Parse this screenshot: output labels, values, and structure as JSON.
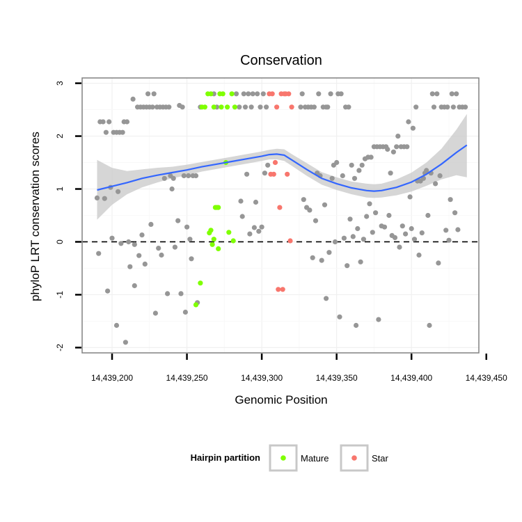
{
  "chart_data": {
    "type": "scatter",
    "title": "Conservation",
    "xlabel": "Genomic Position",
    "ylabel": "phyloP LRT conservation scores",
    "xlim": [
      14439180,
      14439445
    ],
    "ylim": [
      -2.1,
      3.1
    ],
    "x_ticks": [
      {
        "value": 14439200,
        "label": "14,439,200"
      },
      {
        "value": 14439250,
        "label": "14,439,250"
      },
      {
        "value": 14439300,
        "label": "14,439,300"
      },
      {
        "value": 14439350,
        "label": "14,439,350"
      },
      {
        "value": 14439400,
        "label": "14,439,400"
      },
      {
        "value": 14439450,
        "label": "14,439,450"
      }
    ],
    "y_ticks": [
      {
        "value": -2,
        "label": "-2"
      },
      {
        "value": -1,
        "label": "-1"
      },
      {
        "value": 0,
        "label": "0"
      },
      {
        "value": 1,
        "label": "1"
      },
      {
        "value": 2,
        "label": "2"
      },
      {
        "value": 3,
        "label": "3"
      }
    ],
    "reference_line": {
      "y": 0,
      "style": "dashed",
      "color": "#000000"
    },
    "grid": true,
    "legend": {
      "title": "Hairpin partition",
      "position": "bottom",
      "entries": [
        {
          "label": "Mature",
          "color": "#7FFF00"
        },
        {
          "label": "Star",
          "color": "#F8766D"
        }
      ]
    },
    "colors": {
      "other": "#969696",
      "mature": "#7FFF00",
      "star": "#F8766D",
      "smooth": "#3366FF",
      "band": "#C8C8C8"
    },
    "smooth": {
      "x": [
        14439190,
        14439200,
        14439210,
        14439220,
        14439230,
        14439240,
        14439250,
        14439260,
        14439270,
        14439280,
        14439290,
        14439300,
        14439305,
        14439310,
        14439315,
        14439320,
        14439330,
        14439340,
        14439350,
        14439360,
        14439370,
        14439375,
        14439380,
        14439390,
        14439400,
        14439410,
        14439420,
        14439430,
        14439437
      ],
      "y": [
        0.98,
        1.05,
        1.12,
        1.2,
        1.26,
        1.31,
        1.36,
        1.42,
        1.47,
        1.52,
        1.57,
        1.62,
        1.65,
        1.66,
        1.64,
        1.55,
        1.37,
        1.2,
        1.1,
        1.02,
        0.97,
        0.96,
        0.97,
        1.03,
        1.13,
        1.28,
        1.47,
        1.69,
        1.83
      ],
      "lower": [
        0.42,
        0.7,
        0.9,
        1.03,
        1.12,
        1.2,
        1.26,
        1.33,
        1.38,
        1.43,
        1.48,
        1.53,
        1.56,
        1.56,
        1.53,
        1.44,
        1.25,
        1.08,
        0.98,
        0.9,
        0.84,
        0.83,
        0.84,
        0.88,
        0.95,
        1.06,
        1.18,
        1.26,
        1.22
      ],
      "upper": [
        1.55,
        1.4,
        1.34,
        1.37,
        1.4,
        1.42,
        1.46,
        1.51,
        1.56,
        1.61,
        1.66,
        1.71,
        1.74,
        1.76,
        1.75,
        1.66,
        1.49,
        1.32,
        1.22,
        1.14,
        1.1,
        1.09,
        1.1,
        1.18,
        1.31,
        1.5,
        1.76,
        2.12,
        2.42
      ]
    },
    "series": [
      {
        "group": "other",
        "points": [
          [
            14439190,
            0.83
          ],
          [
            14439191,
            -0.22
          ],
          [
            14439192,
            2.27
          ],
          [
            14439194,
            2.27
          ],
          [
            14439195,
            0.82
          ],
          [
            14439196,
            2.07
          ],
          [
            14439197,
            -0.93
          ],
          [
            14439198,
            2.27
          ],
          [
            14439199,
            1.03
          ],
          [
            14439200,
            0.07
          ],
          [
            14439201,
            2.07
          ],
          [
            14439203,
            2.07
          ],
          [
            14439203,
            -1.58
          ],
          [
            14439204,
            0.95
          ],
          [
            14439205,
            2.07
          ],
          [
            14439206,
            -0.03
          ],
          [
            14439207,
            2.07
          ],
          [
            14439208,
            2.27
          ],
          [
            14439209,
            -1.9
          ],
          [
            14439210,
            2.27
          ],
          [
            14439211,
            0.0
          ],
          [
            14439212,
            -0.47
          ],
          [
            14439214,
            2.7
          ],
          [
            14439215,
            -0.05
          ],
          [
            14439215,
            -0.83
          ],
          [
            14439217,
            2.55
          ],
          [
            14439218,
            -0.26
          ],
          [
            14439219,
            2.55
          ],
          [
            14439220,
            0.13
          ],
          [
            14439221,
            2.55
          ],
          [
            14439222,
            -0.42
          ],
          [
            14439223,
            2.55
          ],
          [
            14439224,
            2.8
          ],
          [
            14439225,
            2.55
          ],
          [
            14439226,
            0.33
          ],
          [
            14439227,
            2.55
          ],
          [
            14439228,
            2.8
          ],
          [
            14439229,
            -1.35
          ],
          [
            14439230,
            2.55
          ],
          [
            14439231,
            -0.12
          ],
          [
            14439232,
            2.55
          ],
          [
            14439233,
            -0.25
          ],
          [
            14439234,
            2.55
          ],
          [
            14439235,
            1.2
          ],
          [
            14439236,
            2.55
          ],
          [
            14439237,
            -0.98
          ],
          [
            14439238,
            2.55
          ],
          [
            14439239,
            1.25
          ],
          [
            14439240,
            1.0
          ],
          [
            14439241,
            1.2
          ],
          [
            14439242,
            -0.1
          ],
          [
            14439244,
            0.4
          ],
          [
            14439245,
            2.58
          ],
          [
            14439246,
            -0.98
          ],
          [
            14439247,
            2.55
          ],
          [
            14439248,
            1.25
          ],
          [
            14439249,
            -1.33
          ],
          [
            14439250,
            0.28
          ],
          [
            14439251,
            1.25
          ],
          [
            14439252,
            0.05
          ],
          [
            14439253,
            -0.32
          ],
          [
            14439254,
            1.25
          ],
          [
            14439256,
            1.25
          ],
          [
            14439257,
            -1.15
          ],
          [
            14439259,
            2.55
          ],
          [
            14439268,
            2.8
          ],
          [
            14439270,
            2.55
          ],
          [
            14439283,
            2.8
          ],
          [
            14439285,
            2.55
          ],
          [
            14439286,
            0.77
          ],
          [
            14439287,
            0.48
          ],
          [
            14439288,
            2.8
          ],
          [
            14439289,
            2.55
          ],
          [
            14439290,
            1.28
          ],
          [
            14439291,
            2.8
          ],
          [
            14439292,
            0.15
          ],
          [
            14439293,
            2.55
          ],
          [
            14439294,
            2.8
          ],
          [
            14439295,
            0.27
          ],
          [
            14439296,
            0.75
          ],
          [
            14439297,
            2.8
          ],
          [
            14439298,
            0.2
          ],
          [
            14439299,
            2.55
          ],
          [
            14439300,
            0.28
          ],
          [
            14439301,
            2.8
          ],
          [
            14439302,
            1.3
          ],
          [
            14439303,
            2.55
          ],
          [
            14439304,
            1.45
          ],
          [
            14439326,
            2.55
          ],
          [
            14439327,
            2.8
          ],
          [
            14439328,
            0.8
          ],
          [
            14439329,
            2.55
          ],
          [
            14439330,
            0.65
          ],
          [
            14439331,
            2.55
          ],
          [
            14439332,
            0.6
          ],
          [
            14439333,
            2.55
          ],
          [
            14439334,
            -0.3
          ],
          [
            14439335,
            2.55
          ],
          [
            14439336,
            0.4
          ],
          [
            14439337,
            1.3
          ],
          [
            14439338,
            2.8
          ],
          [
            14439339,
            1.25
          ],
          [
            14439340,
            -0.35
          ],
          [
            14439341,
            2.55
          ],
          [
            14439342,
            0.7
          ],
          [
            14439343,
            2.55
          ],
          [
            14439343,
            -1.07
          ],
          [
            14439344,
            2.55
          ],
          [
            14439345,
            -0.2
          ],
          [
            14439346,
            2.8
          ],
          [
            14439347,
            1.2
          ],
          [
            14439348,
            1.45
          ],
          [
            14439349,
            0.0
          ],
          [
            14439350,
            1.5
          ],
          [
            14439351,
            2.8
          ],
          [
            14439352,
            -1.42
          ],
          [
            14439353,
            2.8
          ],
          [
            14439354,
            1.25
          ],
          [
            14439355,
            0.07
          ],
          [
            14439356,
            2.55
          ],
          [
            14439357,
            -0.45
          ],
          [
            14439358,
            2.55
          ],
          [
            14439359,
            0.43
          ],
          [
            14439360,
            1.45
          ],
          [
            14439361,
            0.1
          ],
          [
            14439362,
            1.2
          ],
          [
            14439363,
            -1.58
          ],
          [
            14439364,
            0.25
          ],
          [
            14439365,
            1.35
          ],
          [
            14439366,
            -0.38
          ],
          [
            14439367,
            1.45
          ],
          [
            14439368,
            0.05
          ],
          [
            14439369,
            1.57
          ],
          [
            14439370,
            0.48
          ],
          [
            14439371,
            1.6
          ],
          [
            14439372,
            0.72
          ],
          [
            14439373,
            1.6
          ],
          [
            14439374,
            0.18
          ],
          [
            14439375,
            1.8
          ],
          [
            14439376,
            0.55
          ],
          [
            14439377,
            1.8
          ],
          [
            14439378,
            -1.47
          ],
          [
            14439379,
            1.8
          ],
          [
            14439380,
            0.3
          ],
          [
            14439381,
            1.8
          ],
          [
            14439382,
            0.28
          ],
          [
            14439383,
            1.8
          ],
          [
            14439384,
            1.75
          ],
          [
            14439385,
            0.5
          ],
          [
            14439386,
            1.3
          ],
          [
            14439387,
            0.12
          ],
          [
            14439388,
            1.7
          ],
          [
            14439389,
            0.08
          ],
          [
            14439390,
            1.8
          ],
          [
            14439391,
            2.0
          ],
          [
            14439392,
            -0.1
          ],
          [
            14439393,
            1.8
          ],
          [
            14439394,
            0.3
          ],
          [
            14439395,
            1.8
          ],
          [
            14439396,
            0.15
          ],
          [
            14439397,
            1.8
          ],
          [
            14439398,
            2.27
          ],
          [
            14439399,
            0.85
          ],
          [
            14439400,
            0.25
          ],
          [
            14439401,
            2.15
          ],
          [
            14439402,
            0.05
          ],
          [
            14439403,
            2.55
          ],
          [
            14439404,
            1.15
          ],
          [
            14439405,
            -0.25
          ],
          [
            14439406,
            1.15
          ],
          [
            14439407,
            0.17
          ],
          [
            14439408,
            1.2
          ],
          [
            14439409,
            1.3
          ],
          [
            14439410,
            1.35
          ],
          [
            14439411,
            0.5
          ],
          [
            14439412,
            -1.58
          ],
          [
            14439413,
            1.3
          ],
          [
            14439414,
            2.8
          ],
          [
            14439415,
            2.55
          ],
          [
            14439416,
            1.1
          ],
          [
            14439417,
            2.8
          ],
          [
            14439418,
            -0.4
          ],
          [
            14439419,
            1.25
          ],
          [
            14439420,
            2.55
          ],
          [
            14439422,
            2.55
          ],
          [
            14439423,
            0.22
          ],
          [
            14439424,
            2.55
          ],
          [
            14439425,
            0.03
          ],
          [
            14439426,
            0.8
          ],
          [
            14439427,
            2.8
          ],
          [
            14439428,
            2.55
          ],
          [
            14439429,
            0.55
          ],
          [
            14439430,
            2.8
          ],
          [
            14439431,
            0.23
          ],
          [
            14439432,
            2.55
          ],
          [
            14439434,
            2.55
          ],
          [
            14439436,
            2.55
          ]
        ]
      },
      {
        "name": "Mature",
        "group": "mature",
        "points": [
          [
            14439256,
            -1.19
          ],
          [
            14439259,
            -0.78
          ],
          [
            14439260,
            2.55
          ],
          [
            14439262,
            2.55
          ],
          [
            14439264,
            2.8
          ],
          [
            14439265,
            0.17
          ],
          [
            14439266,
            0.22
          ],
          [
            14439267,
            -0.05
          ],
          [
            14439268,
            0.05
          ],
          [
            14439269,
            0.65
          ],
          [
            14439270,
            0.65
          ],
          [
            14439271,
            -0.13
          ],
          [
            14439272,
            2.8
          ],
          [
            14439273,
            2.55
          ],
          [
            14439274,
            2.8
          ],
          [
            14439276,
            1.5
          ],
          [
            14439277,
            2.55
          ],
          [
            14439278,
            0.18
          ],
          [
            14439280,
            2.8
          ],
          [
            14439281,
            0.02
          ],
          [
            14439282,
            2.55
          ],
          [
            14439266,
            2.8
          ],
          [
            14439268,
            2.55
          ],
          [
            14439271,
            0.65
          ]
        ]
      },
      {
        "name": "Star",
        "group": "star",
        "points": [
          [
            14439305,
            2.8
          ],
          [
            14439306,
            1.28
          ],
          [
            14439307,
            2.8
          ],
          [
            14439308,
            1.28
          ],
          [
            14439309,
            1.5
          ],
          [
            14439310,
            2.55
          ],
          [
            14439311,
            -0.9
          ],
          [
            14439312,
            0.65
          ],
          [
            14439313,
            2.8
          ],
          [
            14439314,
            -0.9
          ],
          [
            14439315,
            2.8
          ],
          [
            14439316,
            2.8
          ],
          [
            14439317,
            1.28
          ],
          [
            14439318,
            2.8
          ],
          [
            14439319,
            0.02
          ],
          [
            14439320,
            2.55
          ]
        ]
      }
    ]
  }
}
